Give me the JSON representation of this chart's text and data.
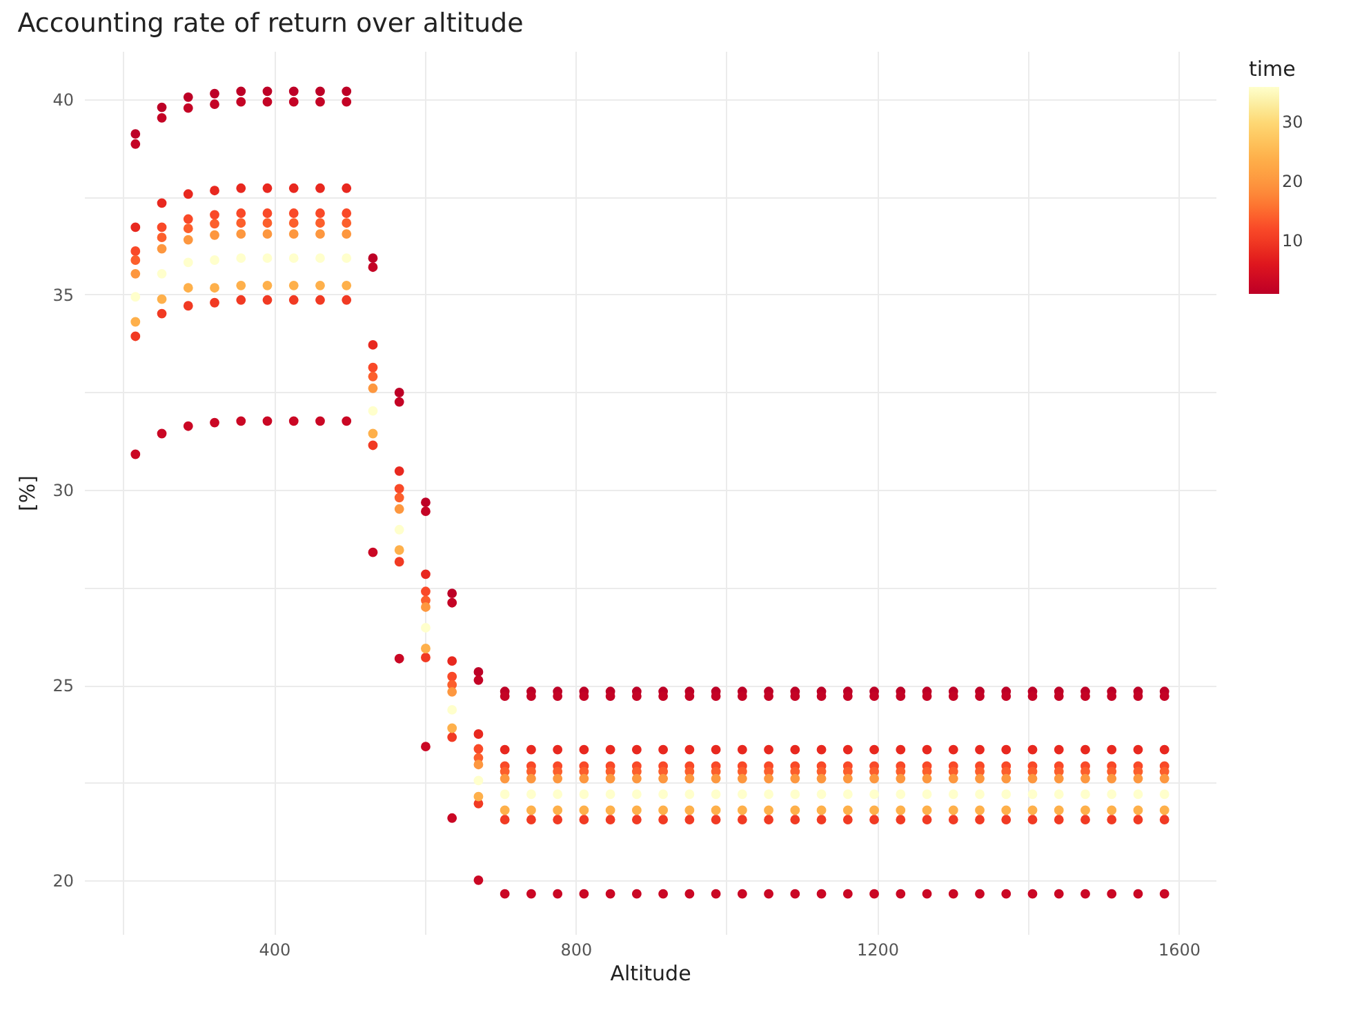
{
  "chart_data": {
    "type": "scatter",
    "title": "Accounting rate of return over altitude",
    "xlabel": "Altitude",
    "ylabel": "[%]",
    "legend_title": "time",
    "clim": [
      1,
      36
    ],
    "cticks": [
      10,
      20,
      30
    ],
    "grid": true,
    "marker": "circle",
    "xlim": [
      148,
      1649
    ],
    "xticks": [
      {
        "value": 200,
        "label": null
      },
      400,
      {
        "value": 600,
        "label": null
      },
      800,
      {
        "value": 1000,
        "label": null
      },
      1200,
      {
        "value": 1400,
        "label": null
      },
      1600
    ],
    "ylim": [
      18.63,
      41.23
    ],
    "yticks": [
      20,
      {
        "value": 22.5,
        "label": null
      },
      25,
      {
        "value": 27.5,
        "label": null
      },
      30,
      {
        "value": 32.5,
        "label": null
      },
      35,
      {
        "value": 37.5,
        "label": null
      },
      40
    ],
    "x": [
      216,
      251,
      286,
      321,
      356,
      391,
      426,
      461,
      496,
      531,
      566,
      601,
      636,
      671,
      706,
      741,
      776,
      811,
      846,
      881,
      916,
      951,
      986,
      1021,
      1056,
      1091,
      1126,
      1161,
      1196,
      1231,
      1266,
      1301,
      1336,
      1371,
      1406,
      1441,
      1476,
      1511,
      1546,
      1581
    ],
    "series": [
      {
        "values": [
          39.11,
          39.79,
          40.05,
          40.14,
          40.2,
          40.2,
          40.2,
          40.2,
          40.2,
          35.93,
          32.49,
          29.68,
          27.35,
          25.34,
          24.84,
          24.84,
          24.84,
          24.84,
          24.84,
          24.84,
          24.84,
          24.84,
          24.84,
          24.84,
          24.84,
          24.84,
          24.84,
          24.84,
          24.84,
          24.84,
          24.84,
          24.84,
          24.84,
          24.84,
          24.84,
          24.84,
          24.84,
          24.84,
          24.84,
          24.84
        ],
        "cvalues": [
          1,
          1,
          1,
          1,
          1,
          1,
          1,
          1,
          1,
          1,
          1,
          1,
          1,
          1,
          1,
          1,
          1,
          1,
          1,
          1,
          1,
          1,
          1,
          1,
          1,
          1,
          1,
          1,
          1,
          1,
          1,
          1,
          1,
          1,
          1,
          1,
          1,
          1,
          1,
          1
        ]
      },
      {
        "values": [
          38.85,
          39.52,
          39.77,
          39.87,
          39.93,
          39.93,
          39.93,
          39.93,
          39.93,
          35.7,
          32.25,
          29.45,
          27.11,
          25.13,
          24.72,
          24.72,
          24.72,
          24.72,
          24.72,
          24.72,
          24.72,
          24.72,
          24.72,
          24.72,
          24.72,
          24.72,
          24.72,
          24.72,
          24.72,
          24.72,
          24.72,
          24.72,
          24.72,
          24.72,
          24.72,
          24.72,
          24.72,
          24.72,
          24.72,
          24.72
        ],
        "cvalues": [
          2,
          2,
          2,
          2,
          2,
          2,
          2,
          2,
          2,
          2,
          2,
          2,
          2,
          2,
          2,
          2,
          2,
          2,
          2,
          2,
          2,
          2,
          2,
          2,
          2,
          2,
          2,
          2,
          2,
          2,
          2,
          2,
          2,
          2,
          2,
          2,
          2,
          2,
          2,
          2
        ]
      },
      {
        "values": [
          36.72,
          37.34,
          37.57,
          37.66,
          37.72,
          37.72,
          37.72,
          37.72,
          37.72,
          33.71,
          30.48,
          27.84,
          25.62,
          23.75,
          23.35,
          23.35,
          23.35,
          23.35,
          23.35,
          23.35,
          23.35,
          23.35,
          23.35,
          23.35,
          23.35,
          23.35,
          23.35,
          23.35,
          23.35,
          23.35,
          23.35,
          23.35,
          23.35,
          23.35,
          23.35,
          23.35,
          23.35,
          23.35,
          23.35,
          23.35
        ],
        "cvalues": [
          8,
          8,
          8,
          8,
          8,
          8,
          8,
          8,
          8,
          8,
          8,
          8,
          8,
          8,
          8,
          8,
          8,
          8,
          8,
          8,
          8,
          8,
          8,
          8,
          8,
          8,
          8,
          8,
          8,
          8,
          8,
          8,
          8,
          8,
          8,
          8,
          8,
          8,
          8,
          8
        ]
      },
      {
        "values": [
          36.11,
          36.72,
          36.93,
          37.04,
          37.08,
          37.08,
          37.08,
          37.08,
          37.08,
          33.13,
          30.03,
          27.4,
          25.22,
          23.37,
          22.93,
          22.93,
          22.93,
          22.93,
          22.93,
          22.93,
          22.93,
          22.93,
          22.93,
          22.93,
          22.93,
          22.93,
          22.93,
          22.93,
          22.93,
          22.93,
          22.93,
          22.93,
          22.93,
          22.93,
          22.93,
          22.93,
          22.93,
          22.93,
          22.93,
          22.93
        ],
        "cvalues": [
          12,
          12,
          12,
          12,
          12,
          12,
          12,
          12,
          12,
          12,
          12,
          12,
          12,
          12,
          12,
          12,
          12,
          12,
          12,
          12,
          12,
          12,
          12,
          12,
          12,
          12,
          12,
          12,
          12,
          12,
          12,
          12,
          12,
          12,
          12,
          12,
          12,
          12,
          12,
          12
        ]
      },
      {
        "values": [
          35.88,
          36.46,
          36.69,
          36.81,
          36.83,
          36.83,
          36.83,
          36.83,
          36.83,
          32.9,
          29.8,
          27.17,
          25.01,
          23.14,
          22.79,
          22.79,
          22.79,
          22.79,
          22.79,
          22.79,
          22.79,
          22.79,
          22.79,
          22.79,
          22.79,
          22.79,
          22.79,
          22.79,
          22.79,
          22.79,
          22.79,
          22.79,
          22.79,
          22.79,
          22.79,
          22.79,
          22.79,
          22.79,
          22.79,
          22.79
        ],
        "cvalues": [
          14,
          14,
          14,
          14,
          14,
          14,
          14,
          14,
          14,
          14,
          14,
          14,
          14,
          14,
          14,
          14,
          14,
          14,
          14,
          14,
          14,
          14,
          14,
          14,
          14,
          14,
          14,
          14,
          14,
          14,
          14,
          14,
          14,
          14,
          14,
          14,
          14,
          14,
          14,
          14
        ]
      },
      {
        "values": [
          35.53,
          36.17,
          36.4,
          36.52,
          36.55,
          36.55,
          36.55,
          36.55,
          36.55,
          32.6,
          29.51,
          27.0,
          24.83,
          22.97,
          22.61,
          22.61,
          22.61,
          22.61,
          22.61,
          22.61,
          22.61,
          22.61,
          22.61,
          22.61,
          22.61,
          22.61,
          22.61,
          22.61,
          22.61,
          22.61,
          22.61,
          22.61,
          22.61,
          22.61,
          22.61,
          22.61,
          22.61,
          22.61,
          22.61,
          22.61
        ],
        "cvalues": [
          20,
          20,
          20,
          20,
          20,
          20,
          20,
          20,
          20,
          20,
          20,
          20,
          20,
          20,
          20,
          20,
          20,
          20,
          20,
          20,
          20,
          20,
          20,
          20,
          20,
          20,
          20,
          20,
          20,
          20,
          20,
          20,
          20,
          20,
          20,
          20,
          20,
          20,
          20,
          20
        ]
      },
      {
        "values": [
          34.94,
          35.53,
          35.82,
          35.88,
          35.93,
          35.93,
          35.93,
          35.93,
          35.93,
          32.02,
          28.98,
          26.47,
          24.37,
          22.56,
          22.21,
          22.21,
          22.21,
          22.21,
          22.21,
          22.21,
          22.21,
          22.21,
          22.21,
          22.21,
          22.21,
          22.21,
          22.21,
          22.21,
          22.21,
          22.21,
          22.21,
          22.21,
          22.21,
          22.21,
          22.21,
          22.21,
          22.21,
          22.21,
          22.21,
          22.21
        ],
        "cvalues": [
          36,
          36,
          36,
          36,
          36,
          36,
          36,
          36,
          36,
          36,
          36,
          36,
          36,
          36,
          36,
          36,
          36,
          36,
          36,
          36,
          36,
          36,
          36,
          36,
          36,
          36,
          36,
          36,
          36,
          36,
          36,
          36,
          36,
          36,
          36,
          36,
          36,
          36,
          36,
          36
        ]
      },
      {
        "values": [
          34.3,
          34.88,
          35.17,
          35.17,
          35.23,
          35.23,
          35.23,
          35.23,
          35.23,
          31.44,
          28.46,
          25.94,
          23.9,
          22.15,
          21.8,
          21.8,
          21.8,
          21.8,
          21.8,
          21.8,
          21.8,
          21.8,
          21.8,
          21.8,
          21.8,
          21.8,
          21.8,
          21.8,
          21.8,
          21.8,
          21.8,
          21.8,
          21.8,
          21.8,
          21.8,
          21.8,
          21.8,
          21.8,
          21.8,
          21.8
        ],
        "cvalues": [
          24,
          24,
          24,
          24,
          24,
          24,
          24,
          24,
          24,
          24,
          24,
          24,
          24,
          24,
          24,
          24,
          24,
          24,
          24,
          24,
          24,
          24,
          24,
          24,
          24,
          24,
          24,
          24,
          24,
          24,
          24,
          24,
          24,
          24,
          24,
          24,
          24,
          24,
          24,
          24
        ]
      },
      {
        "values": [
          33.93,
          34.51,
          34.71,
          34.79,
          34.86,
          34.86,
          34.86,
          34.86,
          34.86,
          31.14,
          28.16,
          25.71,
          23.67,
          21.97,
          21.56,
          21.56,
          21.56,
          21.56,
          21.56,
          21.56,
          21.56,
          21.56,
          21.56,
          21.56,
          21.56,
          21.56,
          21.56,
          21.56,
          21.56,
          21.56,
          21.56,
          21.56,
          21.56,
          21.56,
          21.56,
          21.56,
          21.56,
          21.56,
          21.56,
          21.56
        ],
        "cvalues": [
          10,
          10,
          10,
          10,
          10,
          10,
          10,
          10,
          10,
          10,
          10,
          10,
          10,
          10,
          10,
          10,
          10,
          10,
          10,
          10,
          10,
          10,
          10,
          10,
          10,
          10,
          10,
          10,
          10,
          10,
          10,
          10,
          10,
          10,
          10,
          10,
          10,
          10,
          10,
          10
        ]
      },
      {
        "values": [
          30.91,
          31.44,
          31.63,
          31.72,
          31.76,
          31.76,
          31.76,
          31.76,
          31.76,
          28.4,
          25.68,
          23.43,
          21.6,
          20.01,
          19.66,
          19.66,
          19.66,
          19.66,
          19.66,
          19.66,
          19.66,
          19.66,
          19.66,
          19.66,
          19.66,
          19.66,
          19.66,
          19.66,
          19.66,
          19.66,
          19.66,
          19.66,
          19.66,
          19.66,
          19.66,
          19.66,
          19.66,
          19.66,
          19.66,
          19.66
        ],
        "cvalues": [
          3,
          3,
          3,
          3,
          3,
          3,
          3,
          3,
          3,
          3,
          3,
          3,
          3,
          3,
          3,
          3,
          3,
          3,
          3,
          3,
          3,
          3,
          3,
          3,
          3,
          3,
          3,
          3,
          3,
          3,
          3,
          3,
          3,
          3,
          3,
          3,
          3,
          3,
          3,
          3
        ]
      }
    ]
  }
}
